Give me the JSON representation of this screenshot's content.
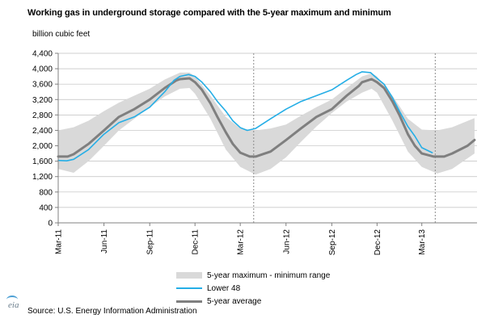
{
  "title": "Working gas in underground storage compared with the 5-year maximum and minimum",
  "unit_label": "billion cubic feet",
  "source_label": "Source:  U.S. Energy Information Administration",
  "logo_text": "eia",
  "colors": {
    "band": "#d9d9d9",
    "lower48": "#25aee6",
    "average": "#7f7f7f",
    "divider": "#8c8c8c",
    "grid": "#bfbfbf"
  },
  "chart_data": {
    "type": "line",
    "title": "Working gas in underground storage compared with the 5-year maximum and minimum",
    "ylabel": "billion cubic feet",
    "xlabel": "",
    "ylim": [
      0,
      4400
    ],
    "xlim": [
      "2011-03-01",
      "2013-06-20"
    ],
    "yticks": [
      0,
      400,
      800,
      1200,
      1600,
      2000,
      2400,
      2800,
      3200,
      3600,
      4000,
      4400
    ],
    "ytick_labels": [
      "0",
      "400",
      "800",
      "1,200",
      "1,600",
      "2,000",
      "2,400",
      "2,800",
      "3,200",
      "3,600",
      "4,000",
      "4,400"
    ],
    "xticks": [
      "2011-03-01",
      "2011-06-01",
      "2011-09-01",
      "2011-12-01",
      "2012-03-01",
      "2012-06-01",
      "2012-09-01",
      "2012-12-01",
      "2013-03-01"
    ],
    "xtick_labels": [
      "Mar-11",
      "Jun-11",
      "Sep-11",
      "Dec-11",
      "Mar-12",
      "Jun-12",
      "Sep-12",
      "Dec-12",
      "Mar-13"
    ],
    "grid": true,
    "dividers": [
      "2012-03-28",
      "2013-03-28"
    ],
    "legend_position": "bottom",
    "series": [
      {
        "name": "5-year maximum - minimum range",
        "type": "range",
        "x": [
          "2011-03-01",
          "2011-04-01",
          "2011-05-01",
          "2011-06-01",
          "2011-07-01",
          "2011-08-01",
          "2011-09-01",
          "2011-10-01",
          "2011-11-01",
          "2011-11-20",
          "2011-12-01",
          "2012-01-01",
          "2012-02-01",
          "2012-03-01",
          "2012-04-01",
          "2012-05-01",
          "2012-06-01",
          "2012-07-01",
          "2012-08-01",
          "2012-09-01",
          "2012-10-01",
          "2012-11-01",
          "2012-11-20",
          "2012-12-01",
          "2013-01-01",
          "2013-02-01",
          "2013-03-01",
          "2013-04-01",
          "2013-05-01",
          "2013-06-15"
        ],
        "max": [
          2400,
          2480,
          2650,
          2900,
          3120,
          3300,
          3480,
          3720,
          3900,
          3900,
          3800,
          3300,
          2750,
          2450,
          2400,
          2450,
          2550,
          2780,
          3000,
          3200,
          3500,
          3800,
          3880,
          3800,
          3300,
          2700,
          2420,
          2400,
          2480,
          2720
        ],
        "min": [
          1400,
          1300,
          1600,
          2000,
          2400,
          2700,
          3000,
          3280,
          3480,
          3500,
          3350,
          2700,
          1900,
          1450,
          1250,
          1400,
          1700,
          2100,
          2500,
          2850,
          3150,
          3380,
          3480,
          3380,
          2650,
          1850,
          1450,
          1280,
          1400,
          1800
        ]
      },
      {
        "name": "Lower 48",
        "x": [
          "2011-03-01",
          "2011-03-18",
          "2011-04-01",
          "2011-05-01",
          "2011-06-01",
          "2011-07-01",
          "2011-08-01",
          "2011-09-01",
          "2011-10-01",
          "2011-10-20",
          "2011-11-01",
          "2011-11-18",
          "2011-12-01",
          "2011-12-15",
          "2012-01-01",
          "2012-01-15",
          "2012-02-01",
          "2012-02-15",
          "2012-03-01",
          "2012-03-15",
          "2012-04-01",
          "2012-05-01",
          "2012-06-01",
          "2012-07-01",
          "2012-08-01",
          "2012-09-01",
          "2012-10-01",
          "2012-10-20",
          "2012-11-01",
          "2012-11-18",
          "2012-12-01",
          "2012-12-15",
          "2013-01-01",
          "2013-01-15",
          "2013-02-01",
          "2013-02-15",
          "2013-03-01",
          "2013-03-22"
        ],
        "y": [
          1620,
          1610,
          1650,
          1900,
          2300,
          2600,
          2750,
          3000,
          3400,
          3700,
          3800,
          3850,
          3800,
          3650,
          3400,
          3150,
          2900,
          2650,
          2470,
          2400,
          2450,
          2700,
          2950,
          3150,
          3300,
          3450,
          3700,
          3850,
          3920,
          3900,
          3750,
          3600,
          3250,
          2900,
          2500,
          2250,
          1950,
          1820
        ]
      },
      {
        "name": "5-year average",
        "x": [
          "2011-03-01",
          "2011-03-20",
          "2011-04-01",
          "2011-05-01",
          "2011-06-01",
          "2011-07-01",
          "2011-08-01",
          "2011-09-01",
          "2011-10-01",
          "2011-10-25",
          "2011-11-01",
          "2011-11-20",
          "2011-12-01",
          "2011-12-15",
          "2012-01-01",
          "2012-01-15",
          "2012-02-01",
          "2012-02-15",
          "2012-03-01",
          "2012-03-20",
          "2012-04-01",
          "2012-05-01",
          "2012-06-01",
          "2012-07-01",
          "2012-08-01",
          "2012-09-01",
          "2012-10-01",
          "2012-10-25",
          "2012-11-01",
          "2012-11-20",
          "2012-12-01",
          "2012-12-15",
          "2013-01-01",
          "2013-01-15",
          "2013-02-01",
          "2013-02-15",
          "2013-03-01",
          "2013-03-25",
          "2013-04-15",
          "2013-05-01",
          "2013-06-01",
          "2013-06-15"
        ],
        "y": [
          1720,
          1720,
          1780,
          2050,
          2400,
          2750,
          2950,
          3200,
          3500,
          3700,
          3730,
          3750,
          3650,
          3450,
          3100,
          2750,
          2350,
          2050,
          1820,
          1720,
          1720,
          1850,
          2150,
          2450,
          2750,
          2950,
          3300,
          3550,
          3650,
          3730,
          3650,
          3500,
          3150,
          2800,
          2300,
          2000,
          1800,
          1720,
          1720,
          1800,
          2000,
          2150
        ]
      }
    ]
  }
}
